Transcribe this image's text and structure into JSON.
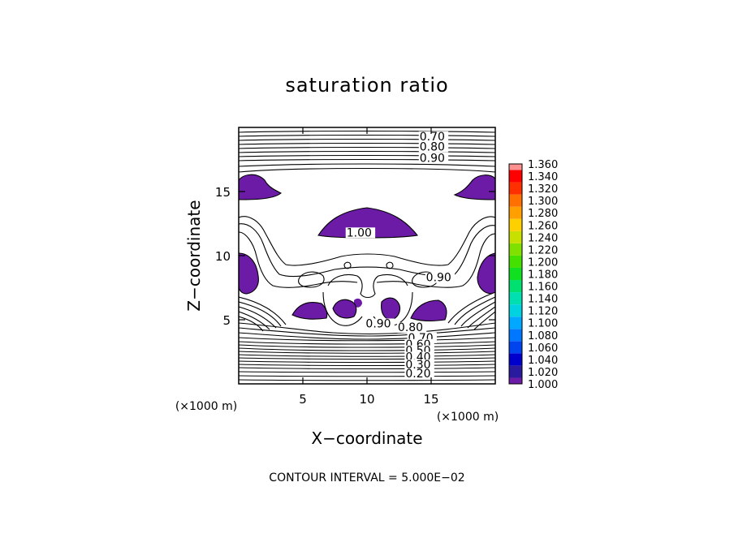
{
  "chart_data": {
    "type": "contour",
    "title": "saturation ratio",
    "xlabel": "X−coordinate",
    "ylabel": "Z−coordinate",
    "x_unit": "(×1000 m)",
    "y_unit": "(×1000 m)",
    "xlim": [
      0,
      20
    ],
    "ylim": [
      0,
      20
    ],
    "x_ticks": [
      5,
      10,
      15
    ],
    "y_ticks": [
      5,
      10,
      15
    ],
    "contour_labels": [
      {
        "text": "0.70",
        "x": 14.1,
        "z": 19.0
      },
      {
        "text": "0.80",
        "x": 14.1,
        "z": 18.2
      },
      {
        "text": "0.90",
        "x": 14.1,
        "z": 17.3
      },
      {
        "text": "1.00",
        "x": 8.4,
        "z": 11.5
      },
      {
        "text": "0.90",
        "x": 14.6,
        "z": 8.0
      },
      {
        "text": "0.90",
        "x": 9.9,
        "z": 4.4
      },
      {
        "text": "0.80",
        "x": 12.4,
        "z": 4.1
      },
      {
        "text": "0.70",
        "x": 13.2,
        "z": 3.3
      },
      {
        "text": "0.60",
        "x": 13.0,
        "z": 2.8
      },
      {
        "text": "0.50",
        "x": 13.0,
        "z": 2.3
      },
      {
        "text": "0.40",
        "x": 13.0,
        "z": 1.8
      },
      {
        "text": "0.30",
        "x": 13.0,
        "z": 1.2
      },
      {
        "text": "0.20",
        "x": 13.0,
        "z": 0.5
      }
    ],
    "colorbar": {
      "levels": [
        "1.000",
        "1.020",
        "1.040",
        "1.060",
        "1.080",
        "1.100",
        "1.120",
        "1.140",
        "1.160",
        "1.180",
        "1.200",
        "1.220",
        "1.240",
        "1.260",
        "1.280",
        "1.300",
        "1.320",
        "1.340",
        "1.360"
      ],
      "colors": [
        "#6b1ba5",
        "#2a1a9e",
        "#0000cc",
        "#0044ee",
        "#0077ff",
        "#00a8ff",
        "#00d2e0",
        "#00dfb0",
        "#00e070",
        "#10e020",
        "#44e000",
        "#80e000",
        "#c8e000",
        "#ffd000",
        "#ffa000",
        "#ff7000",
        "#ff3000",
        "#ff0000",
        "#ff9090"
      ]
    },
    "filled_region_value": "1.000",
    "filled_color": "#6b1ba5",
    "contour_interval_text": "CONTOUR INTERVAL =  5.000E−02"
  }
}
